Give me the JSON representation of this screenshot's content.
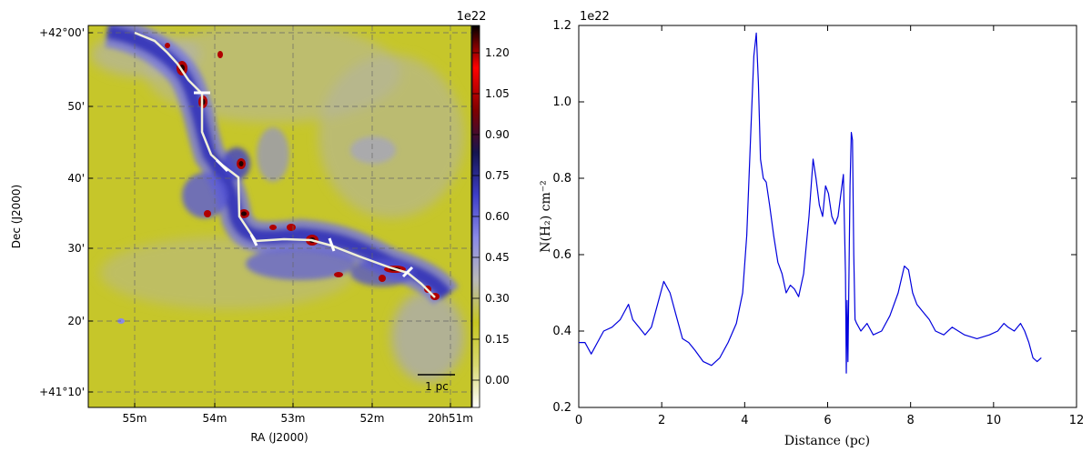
{
  "chart_data": [
    {
      "type": "heatmap",
      "xlabel": "RA (J2000)",
      "ylabel": "Dec (J2000)",
      "x_ticks": [
        "55m",
        "54m",
        "53m",
        "52m",
        "20h51m"
      ],
      "y_ticks": [
        "+42°00'",
        "50'",
        "40'",
        "30'",
        "20'",
        "+41°10'"
      ],
      "colorbar": {
        "multiplier": "1e22",
        "ticks": [
          "1.20",
          "1.05",
          "0.90",
          "0.75",
          "0.60",
          "0.45",
          "0.30",
          "0.15",
          "0.00"
        ],
        "range": [
          -0.1,
          1.3
        ],
        "colors": [
          "#ffffff",
          "#d8d870",
          "#c5c520",
          "#b8b8b8",
          "#8a8ae6",
          "#3e3ec8",
          "#151550",
          "#800000",
          "#ff0000",
          "#000000"
        ]
      },
      "scalebar_label": "1 pc",
      "grid": true,
      "filament_color": "#f0f0d8",
      "marker_color": "#ffffff"
    },
    {
      "type": "line",
      "xlabel": "Distance (pc)",
      "ylabel": "N(H₂) cm⁻²",
      "y_multiplier": "1e22",
      "xlim": [
        0,
        12
      ],
      "ylim": [
        0.2,
        1.2
      ],
      "x_ticks": [
        "0",
        "2",
        "4",
        "6",
        "8",
        "10",
        "12"
      ],
      "y_ticks": [
        "0.2",
        "0.4",
        "0.6",
        "0.8",
        "1.0",
        "1.2"
      ],
      "grid": false,
      "series": [
        {
          "color": "#0000dd",
          "x": [
            0,
            0.15,
            0.3,
            0.45,
            0.6,
            0.8,
            1.0,
            1.1,
            1.2,
            1.3,
            1.45,
            1.6,
            1.75,
            1.9,
            2.05,
            2.2,
            2.35,
            2.5,
            2.65,
            2.8,
            3.0,
            3.2,
            3.4,
            3.6,
            3.8,
            3.95,
            4.05,
            4.15,
            4.22,
            4.28,
            4.33,
            4.38,
            4.45,
            4.52,
            4.6,
            4.7,
            4.8,
            4.9,
            5.0,
            5.1,
            5.2,
            5.3,
            5.42,
            5.55,
            5.65,
            5.72,
            5.8,
            5.88,
            5.95,
            6.02,
            6.1,
            6.18,
            6.25,
            6.32,
            6.38,
            6.43,
            6.45,
            6.47,
            6.49,
            6.51,
            6.54,
            6.57,
            6.6,
            6.63,
            6.66,
            6.7,
            6.8,
            6.95,
            7.1,
            7.3,
            7.5,
            7.7,
            7.85,
            7.95,
            8.05,
            8.15,
            8.3,
            8.45,
            8.6,
            8.8,
            9.0,
            9.3,
            9.6,
            9.9,
            10.1,
            10.25,
            10.35,
            10.5,
            10.65,
            10.75,
            10.85,
            10.95,
            11.05,
            11.15
          ],
          "y": [
            0.37,
            0.37,
            0.34,
            0.37,
            0.4,
            0.41,
            0.43,
            0.45,
            0.47,
            0.43,
            0.41,
            0.39,
            0.41,
            0.47,
            0.53,
            0.5,
            0.44,
            0.38,
            0.37,
            0.35,
            0.32,
            0.31,
            0.33,
            0.37,
            0.42,
            0.5,
            0.65,
            0.93,
            1.12,
            1.18,
            1.05,
            0.85,
            0.8,
            0.79,
            0.73,
            0.65,
            0.58,
            0.55,
            0.5,
            0.52,
            0.51,
            0.49,
            0.55,
            0.7,
            0.85,
            0.8,
            0.73,
            0.7,
            0.78,
            0.76,
            0.7,
            0.68,
            0.7,
            0.76,
            0.81,
            0.55,
            0.29,
            0.48,
            0.32,
            0.5,
            0.78,
            0.92,
            0.9,
            0.6,
            0.43,
            0.42,
            0.4,
            0.42,
            0.39,
            0.4,
            0.44,
            0.5,
            0.57,
            0.56,
            0.5,
            0.47,
            0.45,
            0.43,
            0.4,
            0.39,
            0.41,
            0.39,
            0.38,
            0.39,
            0.4,
            0.42,
            0.41,
            0.4,
            0.42,
            0.4,
            0.37,
            0.33,
            0.32,
            0.33
          ]
        }
      ]
    }
  ]
}
